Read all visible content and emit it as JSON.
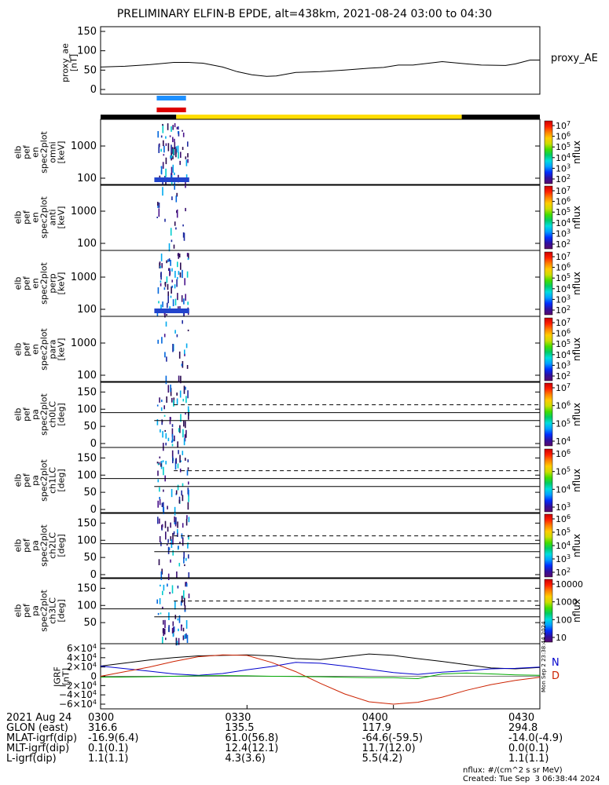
{
  "title": "PRELIMINARY ELFIN-B EPDE, alt=438km, 2021-08-24 03:00 to 04:30",
  "top_panel": {
    "ylabel": "proxy_ae\n[nT]",
    "ticks": [
      "150",
      "100",
      "50",
      "0"
    ],
    "legend": "proxy_AE"
  },
  "panels": [
    {
      "ylabel": "elb\npef\nen\nspec2plot\nomni\n[keV]",
      "ticks": [
        "1000",
        "100"
      ],
      "cb_label": "nflux",
      "cb_ticks": [
        "10^7",
        "10^6",
        "10^5",
        "10^4",
        "10^3",
        "10^2"
      ]
    },
    {
      "ylabel": "elb\npef\nen\nspec2plot\nanti\n[keV]",
      "ticks": [
        "1000",
        "100"
      ],
      "cb_label": "nflux",
      "cb_ticks": [
        "10^7",
        "10^6",
        "10^5",
        "10^4",
        "10^3",
        "10^2"
      ]
    },
    {
      "ylabel": "elb\npef\nen\nspec2plot\nperp\n[keV]",
      "ticks": [
        "1000",
        "100"
      ],
      "cb_label": "nflux",
      "cb_ticks": [
        "10^7",
        "10^6",
        "10^5",
        "10^4",
        "10^3",
        "10^2"
      ]
    },
    {
      "ylabel": "elb\npef\nen\nspec2plot\npara\n[keV]",
      "ticks": [
        "1000",
        "100"
      ],
      "cb_label": "nflux",
      "cb_ticks": [
        "10^7",
        "10^6",
        "10^5",
        "10^4",
        "10^3",
        "10^2"
      ]
    },
    {
      "ylabel": "elb\npef\npa\nspec2plot\nch0LC\n[deg]",
      "ticks": [
        "150",
        "100",
        "50",
        "0"
      ],
      "cb_label": "nflux",
      "cb_ticks": [
        "10^7",
        "10^6",
        "10^5",
        "10^4"
      ]
    },
    {
      "ylabel": "elb\npef\npa\nspec2plot\nch1LC\n[deg]",
      "ticks": [
        "150",
        "100",
        "50",
        "0"
      ],
      "cb_label": "nflux",
      "cb_ticks": [
        "10^6",
        "10^5",
        "10^4",
        "10^3"
      ]
    },
    {
      "ylabel": "elb\npef\npa\nspec2plot\nch2LC\n[deg]",
      "ticks": [
        "150",
        "100",
        "50",
        "0"
      ],
      "cb_label": "nflux",
      "cb_ticks": [
        "10^6",
        "10^5",
        "10^4",
        "10^3",
        "10^2"
      ]
    },
    {
      "ylabel": "elb\npef\npa\nspec2plot\nch3LC\n[deg]",
      "ticks": [
        "150",
        "100",
        "50"
      ],
      "cb_label": "nflux",
      "cb_ticks": [
        "10000",
        "1000",
        "100",
        "10"
      ]
    }
  ],
  "igrf_panel": {
    "ylabel": "IGRF\n[nT]",
    "ticks": [
      "6×10^4",
      "4×10^4",
      "2×10^4",
      "0",
      "−2×10^4",
      "−4×10^4",
      "−6×10^4"
    ],
    "legend": [
      "N",
      "D"
    ],
    "side_text": "Mon Sep  2 23:38:44 2024"
  },
  "colors": {
    "n_component": "#0000cc",
    "d_component": "#cc2200",
    "h_component": "#000000",
    "z_component": "#00aa00",
    "sci_bar": "#ffdd00",
    "bar_blue": "#1e90ff",
    "bar_red": "#dd0000"
  },
  "x_axis": {
    "tick_labels": [
      "0300",
      "0330",
      "0400",
      "0430"
    ],
    "rows": [
      {
        "label": "2021 Aug 24",
        "values": [
          "0300",
          "0330",
          "0400",
          "0430"
        ]
      },
      {
        "label": "GLON (east)",
        "values": [
          "316.6",
          "135.5",
          "117.9",
          "294.8"
        ]
      },
      {
        "label": "MLAT-igrf(dip)",
        "values": [
          "-16.9(6.4)",
          "61.0(56.8)",
          "-64.6(-59.5)",
          "-14.0(-4.9)"
        ]
      },
      {
        "label": "MLT-igrf(dip)",
        "values": [
          "0.1(0.1)",
          "12.4(12.1)",
          "11.7(12.0)",
          "0.0(0.1)"
        ]
      },
      {
        "label": "L-igrf(dip)",
        "values": [
          "1.1(1.1)",
          "4.3(3.6)",
          "5.5(4.2)",
          "1.1(1.1)"
        ]
      }
    ]
  },
  "footer": {
    "units": "nflux: #/(cm^2 s sr MeV)",
    "created": "Created: Tue Sep  3 06:38:44 2024"
  },
  "chart_data": {
    "type": "line",
    "title": "PRELIMINARY ELFIN-B EPDE, alt=438km, 2021-08-24 03:00 to 04:30",
    "proxy_ae": {
      "x_minutes": [
        0,
        5,
        10,
        15,
        18,
        21,
        25,
        28,
        31,
        34,
        36,
        40,
        45,
        50,
        55,
        58,
        61,
        64,
        70,
        75,
        78,
        83,
        85,
        88,
        90
      ],
      "values": [
        58,
        60,
        64,
        70,
        70,
        68,
        58,
        46,
        38,
        34,
        35,
        44,
        46,
        50,
        55,
        57,
        63,
        63,
        72,
        66,
        63,
        62,
        66,
        76,
        76
      ],
      "ylim": [
        0,
        150
      ],
      "unit": "nT"
    },
    "igrf": {
      "x_minutes": [
        0,
        10,
        15,
        20,
        25,
        30,
        35,
        40,
        45,
        50,
        55,
        60,
        65,
        70,
        75,
        80,
        85,
        90
      ],
      "series": [
        {
          "name": "H",
          "values": [
            22000,
            35000,
            40000,
            44000,
            45000,
            46000,
            44000,
            38000,
            36000,
            42000,
            48000,
            45000,
            38000,
            32000,
            25000,
            18000,
            16000,
            19000
          ]
        },
        {
          "name": "N",
          "values": [
            22000,
            11000,
            5000,
            2000,
            6000,
            14000,
            21000,
            30000,
            28000,
            22000,
            15000,
            8000,
            4000,
            9000,
            12000,
            16000,
            17000,
            20000
          ]
        },
        {
          "name": "D",
          "values": [
            0,
            20000,
            32000,
            42000,
            46000,
            45000,
            30000,
            10000,
            -15000,
            -38000,
            -55000,
            -60000,
            -56000,
            -45000,
            -30000,
            -18000,
            -9000,
            -2000
          ]
        },
        {
          "name": "Z",
          "values": [
            -2000,
            -1000,
            0,
            1000,
            1500,
            1000,
            0,
            -500,
            -1000,
            -2000,
            -3000,
            -3000,
            -5000,
            5000,
            7000,
            5000,
            3000,
            2000
          ]
        }
      ],
      "ylim": [
        -60000,
        60000
      ],
      "unit": "nT"
    },
    "pa_lines_deg": {
      "solid_upper": 90,
      "dashed": 113,
      "solid_lower": 67
    },
    "science_bars": [
      {
        "color": "blue",
        "x_minutes": [
          11.5,
          17.5
        ]
      },
      {
        "color": "red",
        "x_minutes": [
          11.5,
          17.5
        ]
      }
    ],
    "status_bar": [
      {
        "state": "black",
        "x_minutes": [
          0,
          15.5
        ]
      },
      {
        "state": "yellow",
        "x_minutes": [
          15.5,
          74
        ]
      },
      {
        "state": "black",
        "x_minutes": [
          74,
          90
        ]
      }
    ],
    "xlim_minutes": [
      0,
      90
    ],
    "activity_interval_minutes": [
      11.5,
      18
    ]
  }
}
